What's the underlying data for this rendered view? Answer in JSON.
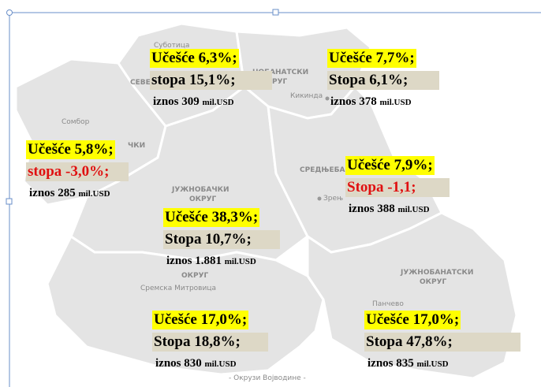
{
  "map_labels": [
    "Суботица",
    "СЕВЕ",
    "НОБАНАТСКИ",
    "ОКРУГ",
    "Кикинда",
    "Сомбор",
    "ЧКИ",
    "СРЕДЊЕБА",
    "Зрењ",
    "ЈУЖНОБАЧКИ",
    "ОКРУГ",
    "ОКРУГ",
    "Сремска Митровица",
    "ЈУЖНОБАНАТСКИ",
    "ОКРУГ",
    "Панчево"
  ],
  "caption": "- Окрузи Војводине -",
  "districts": [
    {
      "share": "Učešće 6,3%;",
      "rate": "stopa 15,1%;",
      "amount": "iznos 309",
      "unit": "mil.USD"
    },
    {
      "share": "Učešće 7,7%;",
      "rate": "Stopa 6,1%;",
      "amount": "iznos 378",
      "unit": "mil.USD"
    },
    {
      "share": "Učešće 5,8%;",
      "rate": "stopa -3,0%;",
      "amount": "iznos 285",
      "unit": "mil.USD"
    },
    {
      "share": "Učešće 7,9%;",
      "rate": "Stopa -1,1;",
      "amount": "iznos 388",
      "unit": "mil.USD"
    },
    {
      "share": "Učešće 38,3%;",
      "rate": "Stopa 10,7%;",
      "amount": "iznos 1.881",
      "unit": "mil.USD"
    },
    {
      "share": "Učešće 17,0%;",
      "rate": "Stopa 18,8%;",
      "amount": "iznos 830",
      "unit": "mil.USD"
    },
    {
      "share": "Učešće 17,0%;",
      "rate": "Stopa 47,8%;",
      "amount": "iznos 835",
      "unit": "mil.USD"
    }
  ]
}
